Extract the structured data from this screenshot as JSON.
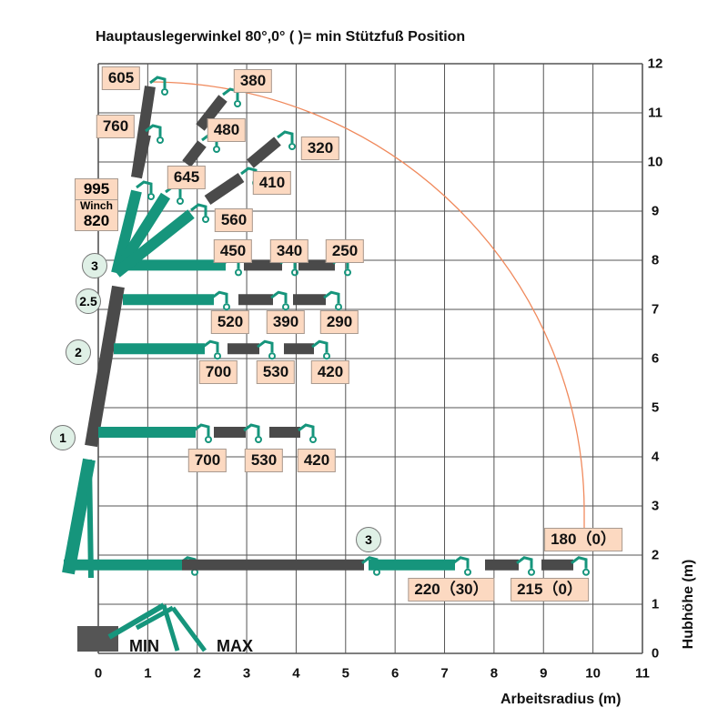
{
  "title": "Hauptauslegerwinkel 80°,0° (  )= min Stützfuß Position",
  "x_axis": {
    "label": "Arbeitsradius (m)",
    "ticks": [
      "0",
      "1",
      "2",
      "3",
      "4",
      "5",
      "6",
      "7",
      "8",
      "9",
      "10",
      "11"
    ]
  },
  "y_axis": {
    "label": "Hubhöhe (m)",
    "ticks": [
      "0",
      "1",
      "2",
      "3",
      "4",
      "5",
      "6",
      "7",
      "8",
      "9",
      "10",
      "11",
      "12"
    ]
  },
  "load_labels": [
    "605",
    "380",
    "760",
    "480",
    "320",
    "645",
    "410",
    "560",
    "450",
    "340",
    "250",
    "520",
    "390",
    "290",
    "700",
    "530",
    "420",
    "700",
    "530",
    "420",
    "180（0）",
    "220（30）",
    "215（0）"
  ],
  "winch": {
    "top": "995",
    "word": "Winch",
    "bottom": "820"
  },
  "angle_markers": [
    "3",
    "2.5",
    "2",
    "1",
    "3"
  ],
  "outrigger": {
    "min": "MIN",
    "max": "MAX"
  },
  "colors": {
    "boom": "#16957c",
    "extension": "#4a4a4a",
    "label_bg": "#fcd9c1",
    "arc": "#f08a5d"
  }
}
